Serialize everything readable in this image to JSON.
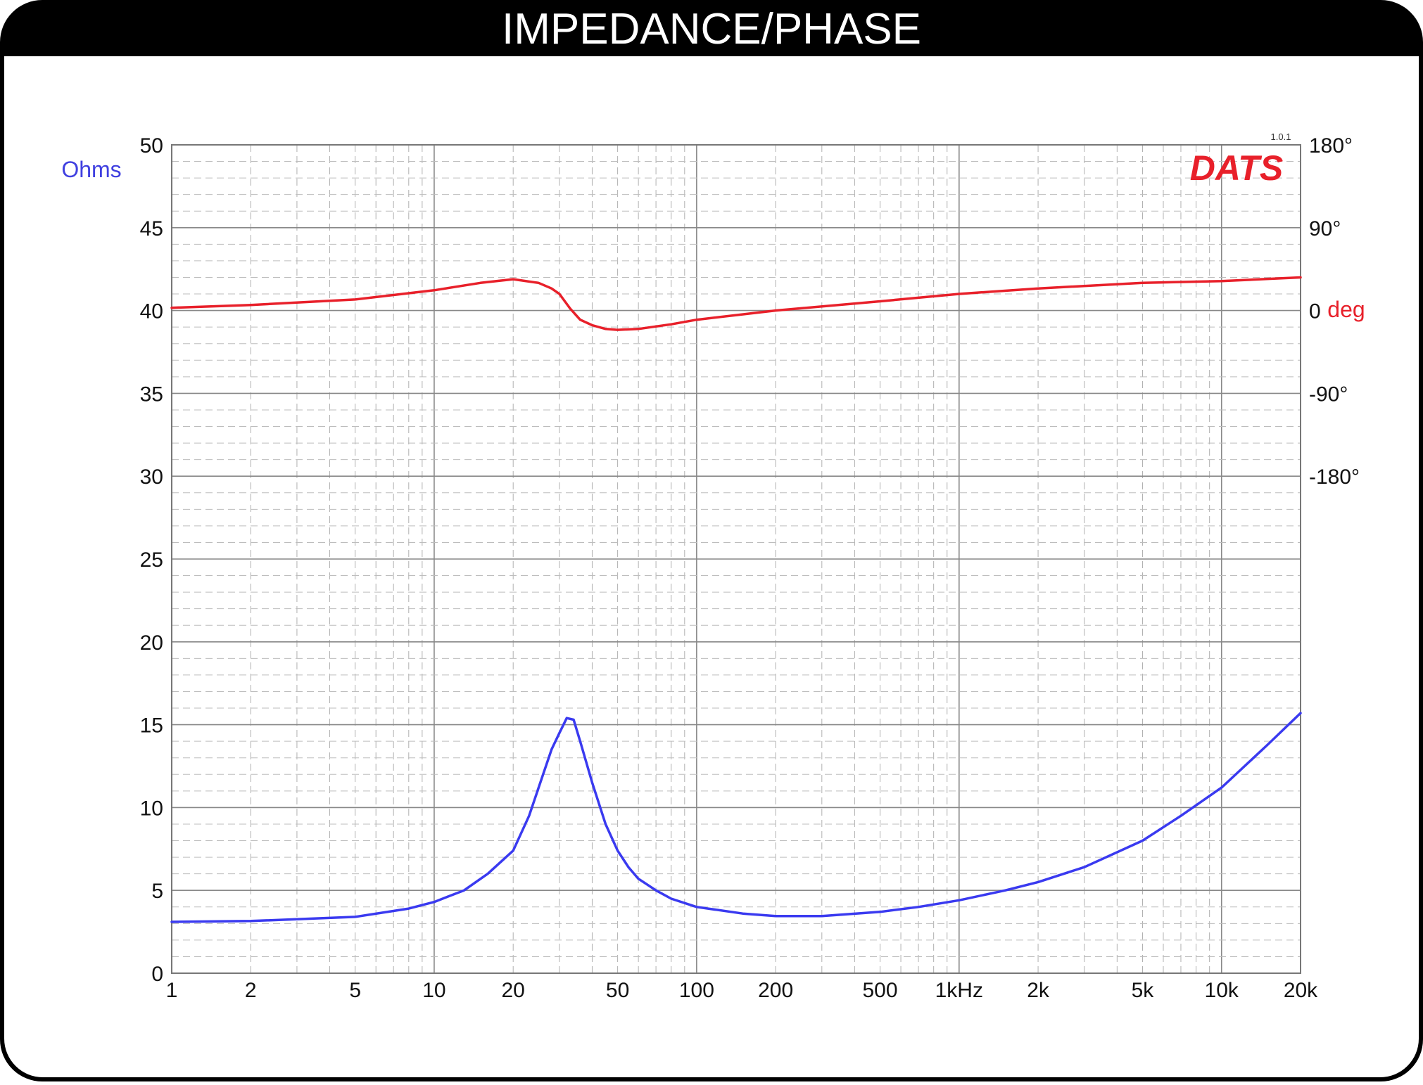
{
  "header": {
    "title": "IMPEDANCE/PHASE"
  },
  "logo": {
    "text": "DATS",
    "version": "1.0.1",
    "color": "#e8202a"
  },
  "colors": {
    "impedance": "#3a3af0",
    "phase": "#e8202a",
    "background": "#000000"
  },
  "chart_data": {
    "type": "line",
    "title": "IMPEDANCE/PHASE",
    "xscale": "log",
    "xlim": [
      1,
      20000
    ],
    "x_ticks": [
      {
        "v": 1,
        "label": "1"
      },
      {
        "v": 2,
        "label": "2"
      },
      {
        "v": 5,
        "label": "5"
      },
      {
        "v": 10,
        "label": "10"
      },
      {
        "v": 20,
        "label": "20"
      },
      {
        "v": 50,
        "label": "50"
      },
      {
        "v": 100,
        "label": "100"
      },
      {
        "v": 200,
        "label": "200"
      },
      {
        "v": 500,
        "label": "500"
      },
      {
        "v": 1000,
        "label": "1kHz"
      },
      {
        "v": 2000,
        "label": "2k"
      },
      {
        "v": 5000,
        "label": "5k"
      },
      {
        "v": 10000,
        "label": "10k"
      },
      {
        "v": 20000,
        "label": "20k"
      }
    ],
    "y_left": {
      "label": "Ohms",
      "ylim": [
        0,
        50
      ],
      "ticks": [
        {
          "v": 0,
          "label": "0"
        },
        {
          "v": 5,
          "label": "5"
        },
        {
          "v": 10,
          "label": "10"
        },
        {
          "v": 15,
          "label": "15"
        },
        {
          "v": 20,
          "label": "20"
        },
        {
          "v": 25,
          "label": "25"
        },
        {
          "v": 30,
          "label": "30"
        },
        {
          "v": 35,
          "label": "35"
        },
        {
          "v": 40,
          "label": "40"
        },
        {
          "v": 45,
          "label": "45"
        },
        {
          "v": 50,
          "label": "50"
        }
      ]
    },
    "y_right": {
      "label": "deg",
      "ticks": [
        {
          "v": 180,
          "label": "180°"
        },
        {
          "v": 90,
          "label": "90°"
        },
        {
          "v": 0,
          "label": "0"
        },
        {
          "v": -90,
          "label": "-90°"
        },
        {
          "v": -180,
          "label": "-180°"
        }
      ]
    },
    "grid": true,
    "series": [
      {
        "key": "impedance",
        "axis": "left",
        "x": [
          1,
          2,
          5,
          8,
          10,
          13,
          16,
          20,
          23,
          26,
          28,
          30,
          32,
          34,
          36,
          40,
          45,
          50,
          55,
          60,
          70,
          80,
          100,
          150,
          200,
          300,
          500,
          700,
          1000,
          1500,
          2000,
          3000,
          5000,
          7000,
          10000,
          15000,
          20000
        ],
        "y": [
          3.1,
          3.15,
          3.4,
          3.9,
          4.3,
          5.0,
          6.0,
          7.4,
          9.5,
          12.0,
          13.5,
          14.5,
          15.4,
          15.3,
          14.0,
          11.5,
          9.0,
          7.4,
          6.4,
          5.7,
          5.0,
          4.5,
          4.0,
          3.6,
          3.45,
          3.45,
          3.7,
          4.0,
          4.4,
          5.0,
          5.5,
          6.4,
          8.0,
          9.5,
          11.2,
          13.8,
          15.7
        ]
      },
      {
        "key": "phase",
        "axis": "right",
        "x": [
          1,
          2,
          5,
          10,
          15,
          20,
          25,
          28,
          30,
          33,
          36,
          40,
          45,
          50,
          60,
          80,
          100,
          200,
          500,
          1000,
          2000,
          5000,
          10000,
          20000
        ],
        "y": [
          3,
          6,
          12,
          22,
          30,
          34,
          30,
          24,
          18,
          2,
          -10,
          -16,
          -20,
          -21,
          -20,
          -15,
          -10,
          0,
          10,
          18,
          24,
          30,
          32,
          36
        ]
      }
    ]
  }
}
